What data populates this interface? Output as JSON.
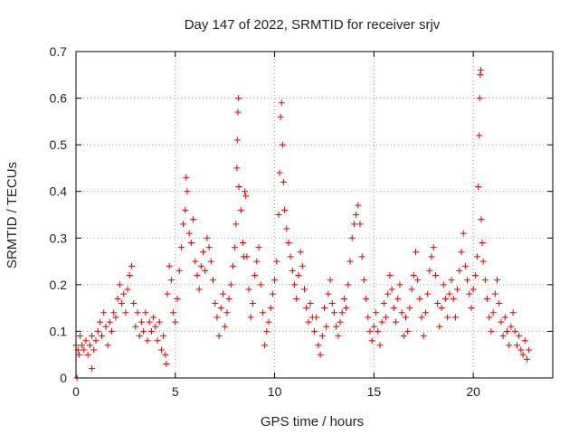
{
  "chart_data": {
    "type": "scatter",
    "title": "Day 147 of 2022, SRMTID for receiver srjv",
    "xlabel": "GPS time / hours",
    "ylabel": "SRMTID / TECUs",
    "xlim": [
      0,
      24
    ],
    "ylim": [
      0,
      0.7
    ],
    "xticks": [
      "0",
      "5",
      "10",
      "15",
      "20"
    ],
    "yticks": [
      "0",
      "0.1",
      "0.2",
      "0.3",
      "0.4",
      "0.5",
      "0.6",
      "0.7"
    ],
    "grid": true,
    "marker": "+",
    "color": "#e00000",
    "series": [
      {
        "name": "SRMTID",
        "points": [
          [
            0.0,
            0.07
          ],
          [
            0.05,
            0.0
          ],
          [
            0.1,
            0.06
          ],
          [
            0.15,
            0.05
          ],
          [
            0.2,
            0.09
          ],
          [
            0.3,
            0.07
          ],
          [
            0.4,
            0.06
          ],
          [
            0.5,
            0.08
          ],
          [
            0.6,
            0.05
          ],
          [
            0.7,
            0.07
          ],
          [
            0.8,
            0.09
          ],
          [
            0.9,
            0.06
          ],
          [
            0.8,
            0.02
          ],
          [
            1.0,
            0.08
          ],
          [
            1.1,
            0.1
          ],
          [
            1.2,
            0.12
          ],
          [
            1.3,
            0.09
          ],
          [
            1.4,
            0.14
          ],
          [
            1.5,
            0.11
          ],
          [
            1.6,
            0.07
          ],
          [
            1.7,
            0.12
          ],
          [
            1.8,
            0.1
          ],
          [
            1.9,
            0.14
          ],
          [
            2.0,
            0.13
          ],
          [
            2.1,
            0.17
          ],
          [
            2.2,
            0.2
          ],
          [
            2.3,
            0.16
          ],
          [
            2.4,
            0.18
          ],
          [
            2.5,
            0.14
          ],
          [
            2.6,
            0.19
          ],
          [
            2.7,
            0.22
          ],
          [
            2.8,
            0.24
          ],
          [
            2.9,
            0.16
          ],
          [
            3.0,
            0.11
          ],
          [
            3.1,
            0.14
          ],
          [
            3.2,
            0.09
          ],
          [
            3.3,
            0.12
          ],
          [
            3.4,
            0.1
          ],
          [
            3.5,
            0.14
          ],
          [
            3.6,
            0.08
          ],
          [
            3.7,
            0.12
          ],
          [
            3.8,
            0.1
          ],
          [
            3.9,
            0.13
          ],
          [
            4.0,
            0.11
          ],
          [
            4.1,
            0.08
          ],
          [
            4.2,
            0.12
          ],
          [
            4.3,
            0.06
          ],
          [
            4.4,
            0.09
          ],
          [
            4.5,
            0.05
          ],
          [
            4.55,
            0.03
          ],
          [
            4.6,
            0.18
          ],
          [
            4.7,
            0.24
          ],
          [
            4.8,
            0.21
          ],
          [
            4.9,
            0.14
          ],
          [
            5.0,
            0.12
          ],
          [
            5.1,
            0.17
          ],
          [
            5.2,
            0.23
          ],
          [
            5.3,
            0.28
          ],
          [
            5.4,
            0.33
          ],
          [
            5.5,
            0.36
          ],
          [
            5.55,
            0.43
          ],
          [
            5.6,
            0.4
          ],
          [
            5.7,
            0.31
          ],
          [
            5.8,
            0.29
          ],
          [
            5.9,
            0.34
          ],
          [
            6.0,
            0.25
          ],
          [
            6.1,
            0.22
          ],
          [
            6.2,
            0.19
          ],
          [
            6.3,
            0.24
          ],
          [
            6.4,
            0.27
          ],
          [
            6.5,
            0.23
          ],
          [
            6.6,
            0.3
          ],
          [
            6.7,
            0.28
          ],
          [
            6.8,
            0.25
          ],
          [
            6.9,
            0.21
          ],
          [
            7.0,
            0.16
          ],
          [
            7.1,
            0.13
          ],
          [
            7.2,
            0.09
          ],
          [
            7.3,
            0.15
          ],
          [
            7.4,
            0.18
          ],
          [
            7.5,
            0.11
          ],
          [
            7.6,
            0.14
          ],
          [
            7.7,
            0.17
          ],
          [
            7.8,
            0.2
          ],
          [
            7.9,
            0.24
          ],
          [
            8.0,
            0.28
          ],
          [
            8.05,
            0.33
          ],
          [
            8.1,
            0.45
          ],
          [
            8.12,
            0.51
          ],
          [
            8.15,
            0.57
          ],
          [
            8.18,
            0.6
          ],
          [
            8.2,
            0.41
          ],
          [
            8.3,
            0.36
          ],
          [
            8.4,
            0.29
          ],
          [
            8.45,
            0.26
          ],
          [
            8.5,
            0.4
          ],
          [
            8.55,
            0.39
          ],
          [
            8.6,
            0.26
          ],
          [
            8.7,
            0.19
          ],
          [
            8.8,
            0.13
          ],
          [
            8.9,
            0.16
          ],
          [
            9.0,
            0.22
          ],
          [
            9.1,
            0.25
          ],
          [
            9.2,
            0.28
          ],
          [
            9.3,
            0.2
          ],
          [
            9.4,
            0.14
          ],
          [
            9.5,
            0.07
          ],
          [
            9.6,
            0.1
          ],
          [
            9.7,
            0.12
          ],
          [
            9.8,
            0.15
          ],
          [
            9.9,
            0.18
          ],
          [
            10.0,
            0.21
          ],
          [
            10.1,
            0.25
          ],
          [
            10.2,
            0.35
          ],
          [
            10.25,
            0.44
          ],
          [
            10.3,
            0.56
          ],
          [
            10.35,
            0.59
          ],
          [
            10.4,
            0.5
          ],
          [
            10.45,
            0.42
          ],
          [
            10.5,
            0.36
          ],
          [
            10.6,
            0.32
          ],
          [
            10.7,
            0.29
          ],
          [
            10.8,
            0.26
          ],
          [
            10.9,
            0.23
          ],
          [
            11.0,
            0.2
          ],
          [
            11.1,
            0.17
          ],
          [
            11.2,
            0.22
          ],
          [
            11.3,
            0.27
          ],
          [
            11.4,
            0.24
          ],
          [
            11.5,
            0.19
          ],
          [
            11.6,
            0.15
          ],
          [
            11.7,
            0.12
          ],
          [
            11.8,
            0.16
          ],
          [
            11.9,
            0.13
          ],
          [
            12.0,
            0.1
          ],
          [
            12.1,
            0.13
          ],
          [
            12.2,
            0.07
          ],
          [
            12.3,
            0.05
          ],
          [
            12.4,
            0.09
          ],
          [
            12.5,
            0.15
          ],
          [
            12.6,
            0.11
          ],
          [
            12.7,
            0.18
          ],
          [
            12.8,
            0.21
          ],
          [
            12.9,
            0.16
          ],
          [
            13.0,
            0.14
          ],
          [
            13.1,
            0.11
          ],
          [
            13.2,
            0.09
          ],
          [
            13.3,
            0.12
          ],
          [
            13.4,
            0.14
          ],
          [
            13.5,
            0.17
          ],
          [
            13.6,
            0.15
          ],
          [
            13.7,
            0.2
          ],
          [
            13.8,
            0.25
          ],
          [
            13.9,
            0.3
          ],
          [
            14.0,
            0.33
          ],
          [
            14.1,
            0.35
          ],
          [
            14.2,
            0.37
          ],
          [
            14.3,
            0.33
          ],
          [
            14.4,
            0.26
          ],
          [
            14.5,
            0.21
          ],
          [
            14.6,
            0.17
          ],
          [
            14.7,
            0.13
          ],
          [
            14.8,
            0.1
          ],
          [
            14.9,
            0.08
          ],
          [
            15.0,
            0.11
          ],
          [
            15.1,
            0.14
          ],
          [
            15.2,
            0.1
          ],
          [
            15.3,
            0.07
          ],
          [
            15.4,
            0.12
          ],
          [
            15.5,
            0.16
          ],
          [
            15.6,
            0.13
          ],
          [
            15.7,
            0.18
          ],
          [
            15.8,
            0.22
          ],
          [
            15.9,
            0.19
          ],
          [
            16.0,
            0.15
          ],
          [
            16.1,
            0.12
          ],
          [
            16.2,
            0.17
          ],
          [
            16.3,
            0.2
          ],
          [
            16.4,
            0.14
          ],
          [
            16.5,
            0.09
          ],
          [
            16.6,
            0.13
          ],
          [
            16.7,
            0.1
          ],
          [
            16.8,
            0.15
          ],
          [
            16.9,
            0.19
          ],
          [
            17.0,
            0.22
          ],
          [
            17.1,
            0.27
          ],
          [
            17.2,
            0.21
          ],
          [
            17.3,
            0.17
          ],
          [
            17.4,
            0.13
          ],
          [
            17.5,
            0.09
          ],
          [
            17.6,
            0.14
          ],
          [
            17.7,
            0.18
          ],
          [
            17.8,
            0.23
          ],
          [
            17.9,
            0.26
          ],
          [
            18.0,
            0.28
          ],
          [
            18.1,
            0.22
          ],
          [
            18.2,
            0.16
          ],
          [
            18.3,
            0.11
          ],
          [
            18.4,
            0.15
          ],
          [
            18.5,
            0.2
          ],
          [
            18.6,
            0.17
          ],
          [
            18.7,
            0.13
          ],
          [
            18.8,
            0.18
          ],
          [
            18.9,
            0.21
          ],
          [
            19.0,
            0.17
          ],
          [
            19.1,
            0.13
          ],
          [
            19.2,
            0.19
          ],
          [
            19.3,
            0.23
          ],
          [
            19.4,
            0.27
          ],
          [
            19.5,
            0.31
          ],
          [
            19.6,
            0.24
          ],
          [
            19.7,
            0.21
          ],
          [
            19.8,
            0.18
          ],
          [
            19.9,
            0.15
          ],
          [
            20.0,
            0.19
          ],
          [
            20.1,
            0.22
          ],
          [
            20.2,
            0.26
          ],
          [
            20.25,
            0.41
          ],
          [
            20.3,
            0.52
          ],
          [
            20.32,
            0.6
          ],
          [
            20.35,
            0.65
          ],
          [
            20.38,
            0.66
          ],
          [
            20.4,
            0.34
          ],
          [
            20.45,
            0.29
          ],
          [
            20.5,
            0.25
          ],
          [
            20.6,
            0.21
          ],
          [
            20.7,
            0.17
          ],
          [
            20.8,
            0.13
          ],
          [
            20.9,
            0.1
          ],
          [
            21.0,
            0.14
          ],
          [
            21.1,
            0.18
          ],
          [
            21.2,
            0.21
          ],
          [
            21.3,
            0.16
          ],
          [
            21.4,
            0.12
          ],
          [
            21.5,
            0.09
          ],
          [
            21.6,
            0.13
          ],
          [
            21.7,
            0.1
          ],
          [
            21.8,
            0.07
          ],
          [
            21.9,
            0.11
          ],
          [
            22.0,
            0.14
          ],
          [
            22.1,
            0.1
          ],
          [
            22.2,
            0.07
          ],
          [
            22.3,
            0.09
          ],
          [
            22.4,
            0.06
          ],
          [
            22.5,
            0.05
          ],
          [
            22.6,
            0.08
          ],
          [
            22.7,
            0.04
          ],
          [
            22.8,
            0.06
          ]
        ]
      }
    ]
  }
}
